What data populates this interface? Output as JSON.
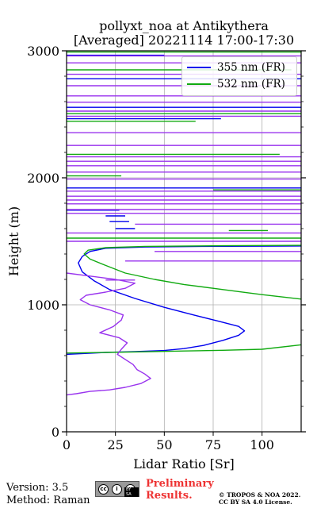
{
  "title": {
    "line1": "pollyxt_noa at Antikythera",
    "line2": "[Averaged] 20221114 17:00-17:30"
  },
  "colors": {
    "ch355": "#0000ee",
    "ch532": "#11aa11",
    "overlay": "#9933ee",
    "grid": "#b0b0b0"
  },
  "chart_data": {
    "type": "line",
    "title": "pollyxt_noa at Antikythera [Averaged] 20221114 17:00-17:30",
    "xlabel": "Lidar Ratio [Sr]",
    "ylabel": "Height (m)",
    "xlim": [
      0,
      120
    ],
    "ylim": [
      0,
      3000
    ],
    "xticks": [
      "0",
      "25",
      "50",
      "75",
      "100"
    ],
    "yticks": [
      "0",
      "1000",
      "2000",
      "3000"
    ],
    "grid": true,
    "legend_position": "top-right",
    "series": [
      {
        "name": "355 nm (FR)",
        "color": "#0000ee",
        "points": [
          [
            0,
            610
          ],
          [
            20,
            625
          ],
          [
            35,
            632
          ],
          [
            50,
            640
          ],
          [
            60,
            655
          ],
          [
            70,
            680
          ],
          [
            80,
            720
          ],
          [
            88,
            760
          ],
          [
            91,
            795
          ],
          [
            88,
            830
          ],
          [
            78,
            870
          ],
          [
            65,
            920
          ],
          [
            50,
            980
          ],
          [
            35,
            1050
          ],
          [
            22,
            1120
          ],
          [
            14,
            1190
          ],
          [
            8,
            1260
          ],
          [
            6,
            1330
          ],
          [
            8,
            1380
          ],
          [
            12,
            1420
          ],
          [
            20,
            1445
          ],
          [
            40,
            1455
          ],
          [
            70,
            1460
          ],
          [
            110,
            1462
          ],
          [
            120,
            1463
          ]
        ]
      },
      {
        "name": "532 nm (FR)",
        "color": "#11aa11",
        "points": [
          [
            0,
            620
          ],
          [
            20,
            625
          ],
          [
            40,
            630
          ],
          [
            60,
            636
          ],
          [
            80,
            642
          ],
          [
            100,
            650
          ],
          [
            120,
            685
          ]
        ]
      },
      {
        "color": "#11aa11",
        "points": [
          [
            120,
            1045
          ],
          [
            100,
            1080
          ],
          [
            80,
            1120
          ],
          [
            60,
            1160
          ],
          [
            45,
            1200
          ],
          [
            30,
            1250
          ],
          [
            20,
            1310
          ],
          [
            12,
            1360
          ],
          [
            9,
            1400
          ],
          [
            11,
            1430
          ],
          [
            20,
            1450
          ],
          [
            40,
            1460
          ],
          [
            80,
            1465
          ],
          [
            120,
            1468
          ]
        ]
      },
      {
        "color": "#9933ee",
        "points": [
          [
            0,
            290
          ],
          [
            5,
            300
          ],
          [
            12,
            318
          ],
          [
            22,
            330
          ],
          [
            30,
            350
          ],
          [
            38,
            380
          ],
          [
            43,
            420
          ],
          [
            40,
            455
          ],
          [
            36,
            490
          ],
          [
            34,
            530
          ],
          [
            30,
            570
          ],
          [
            26,
            610
          ],
          [
            28,
            650
          ],
          [
            31,
            700
          ],
          [
            27,
            740
          ],
          [
            17,
            780
          ],
          [
            24,
            830
          ],
          [
            28,
            880
          ],
          [
            29,
            920
          ],
          [
            22,
            960
          ],
          [
            12,
            1000
          ],
          [
            7,
            1040
          ],
          [
            10,
            1075
          ],
          [
            20,
            1100
          ],
          [
            30,
            1130
          ],
          [
            35,
            1170
          ],
          [
            25,
            1200
          ],
          [
            10,
            1230
          ],
          [
            0,
            1250
          ]
        ]
      }
    ],
    "layer_lines": [
      {
        "color": "#0000ee",
        "height": 2965,
        "x0": 0,
        "x1": 50
      },
      {
        "color": "#0000ee",
        "height": 2465,
        "x0": 0,
        "x1": 79
      },
      {
        "color": "#0000ee",
        "height": 1745,
        "x0": 0,
        "x1": 27
      },
      {
        "color": "#0000ee",
        "height": 1700,
        "x0": 20,
        "x1": 30
      },
      {
        "color": "#0000ee",
        "height": 1655,
        "x0": 22,
        "x1": 32
      },
      {
        "color": "#0000ee",
        "height": 1600,
        "x0": 25,
        "x1": 35
      },
      {
        "color": "#0000ee",
        "height": 1920,
        "x0": 0,
        "x1": 120
      },
      {
        "color": "#0000ee",
        "height": 2555,
        "x0": 0,
        "x1": 120
      },
      {
        "color": "#0000ee",
        "height": 2780,
        "x0": 0,
        "x1": 120
      },
      {
        "color": "#11aa11",
        "height": 2990,
        "x0": 0,
        "x1": 120
      },
      {
        "color": "#11aa11",
        "height": 2850,
        "x0": 0,
        "x1": 115
      },
      {
        "color": "#11aa11",
        "height": 2505,
        "x0": 0,
        "x1": 120
      },
      {
        "color": "#11aa11",
        "height": 2445,
        "x0": 0,
        "x1": 66
      },
      {
        "color": "#11aa11",
        "height": 2185,
        "x0": 0,
        "x1": 109
      },
      {
        "color": "#11aa11",
        "height": 2015,
        "x0": 0,
        "x1": 28
      },
      {
        "color": "#11aa11",
        "height": 1905,
        "x0": 75,
        "x1": 120
      },
      {
        "color": "#11aa11",
        "height": 1585,
        "x0": 83,
        "x1": 103
      },
      {
        "color": "#11aa11",
        "height": 1525,
        "x0": 0,
        "x1": 120
      },
      {
        "color": "#9933ee",
        "height": 2960,
        "x0": 0,
        "x1": 120
      },
      {
        "color": "#9933ee",
        "height": 2905,
        "x0": 0,
        "x1": 120
      },
      {
        "color": "#9933ee",
        "height": 2815,
        "x0": 0,
        "x1": 120
      },
      {
        "color": "#9933ee",
        "height": 2725,
        "x0": 0,
        "x1": 120
      },
      {
        "color": "#9933ee",
        "height": 2645,
        "x0": 0,
        "x1": 120
      },
      {
        "color": "#9933ee",
        "height": 2595,
        "x0": 0,
        "x1": 120
      },
      {
        "color": "#9933ee",
        "height": 2525,
        "x0": 0,
        "x1": 120
      },
      {
        "color": "#9933ee",
        "height": 2485,
        "x0": 0,
        "x1": 120
      },
      {
        "color": "#9933ee",
        "height": 2355,
        "x0": 0,
        "x1": 120
      },
      {
        "color": "#9933ee",
        "height": 2255,
        "x0": 0,
        "x1": 120
      },
      {
        "color": "#9933ee",
        "height": 2165,
        "x0": 0,
        "x1": 120
      },
      {
        "color": "#9933ee",
        "height": 2130,
        "x0": 0,
        "x1": 120
      },
      {
        "color": "#9933ee",
        "height": 2095,
        "x0": 0,
        "x1": 120
      },
      {
        "color": "#9933ee",
        "height": 2045,
        "x0": 0,
        "x1": 120
      },
      {
        "color": "#9933ee",
        "height": 1990,
        "x0": 0,
        "x1": 120
      },
      {
        "color": "#9933ee",
        "height": 1895,
        "x0": 0,
        "x1": 120
      },
      {
        "color": "#9933ee",
        "height": 1855,
        "x0": 0,
        "x1": 120
      },
      {
        "color": "#9933ee",
        "height": 1825,
        "x0": 0,
        "x1": 120
      },
      {
        "color": "#9933ee",
        "height": 1795,
        "x0": 0,
        "x1": 120
      },
      {
        "color": "#9933ee",
        "height": 1750,
        "x0": 0,
        "x1": 120
      },
      {
        "color": "#9933ee",
        "height": 1720,
        "x0": 0,
        "x1": 120
      },
      {
        "color": "#9933ee",
        "height": 1635,
        "x0": 35,
        "x1": 120
      },
      {
        "color": "#9933ee",
        "height": 1565,
        "x0": 0,
        "x1": 120
      },
      {
        "color": "#9933ee",
        "height": 1500,
        "x0": 0,
        "x1": 120
      },
      {
        "color": "#9933ee",
        "height": 1420,
        "x0": 45,
        "x1": 120
      },
      {
        "color": "#9933ee",
        "height": 1345,
        "x0": 30,
        "x1": 120
      },
      {
        "color": "#9933ee",
        "height": 1195,
        "x0": 20,
        "x1": 35
      }
    ]
  },
  "footer": {
    "version": "Version: 3.5",
    "method": "Method: Raman",
    "preliminary_line1": "Preliminary",
    "preliminary_line2": "Results.",
    "copyright_line1": "© TROPOS & NOA 2022.",
    "copyright_line2": "CC BY SA 4.0 License.",
    "cc_badge": {
      "icons": [
        "cc",
        "i",
        "s"
      ],
      "text": "BY SA"
    }
  }
}
